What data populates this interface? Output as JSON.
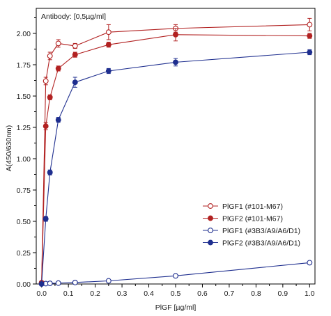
{
  "chart_data": {
    "type": "line",
    "annotation": "Antibody: [0,5µg/ml]",
    "xlabel": "PlGF [µg/ml]",
    "ylabel": "A(450/630nm)",
    "xlim": [
      -0.02,
      1.02
    ],
    "ylim": [
      0,
      2.2
    ],
    "x_ticks": [
      "0.0",
      "0.1",
      "0.2",
      "0.3",
      "0.4",
      "0.5",
      "0.6",
      "0.7",
      "0.8",
      "0.9",
      "1.0"
    ],
    "y_ticks": [
      "0.00",
      "0.25",
      "0.50",
      "0.75",
      "1.00",
      "1.25",
      "1.50",
      "1.75",
      "2.00"
    ],
    "grid": false,
    "legend_position": "bottom-right",
    "x": [
      0,
      0.0156,
      0.03125,
      0.0625,
      0.125,
      0.25,
      0.5,
      1.0
    ],
    "series": [
      {
        "name": "PlGF1 (#101-M67)",
        "color": "#b22222",
        "marker": "open",
        "values": [
          0.01,
          1.62,
          1.82,
          1.92,
          1.9,
          2.01,
          2.04,
          2.07
        ],
        "errors": [
          0.005,
          0.03,
          0.03,
          0.03,
          0.02,
          0.06,
          0.03,
          0.05
        ]
      },
      {
        "name": "PlGF2 (#101-M67)",
        "color": "#b22222",
        "marker": "filled",
        "values": [
          0.01,
          1.26,
          1.49,
          1.72,
          1.83,
          1.91,
          1.99,
          1.98
        ],
        "errors": [
          0.005,
          0.03,
          0.02,
          0.02,
          0.02,
          0.02,
          0.05,
          0.02
        ]
      },
      {
        "name": "PlGF1 (#3B3/A9/A6/D1)",
        "color": "#1f2f8f",
        "marker": "open",
        "values": [
          0.0,
          0.003,
          0.005,
          0.007,
          0.012,
          0.025,
          0.065,
          0.17
        ],
        "errors": [
          0.002,
          0.002,
          0.002,
          0.002,
          0.003,
          0.004,
          0.005,
          0.005
        ]
      },
      {
        "name": "PlGF2 (#3B3/A9/A6/D1)",
        "color": "#1f2f8f",
        "marker": "filled",
        "values": [
          0.0,
          0.52,
          0.89,
          1.31,
          1.61,
          1.7,
          1.77,
          1.85
        ],
        "errors": [
          0.005,
          0.02,
          0.02,
          0.02,
          0.04,
          0.02,
          0.03,
          0.02
        ]
      }
    ]
  }
}
